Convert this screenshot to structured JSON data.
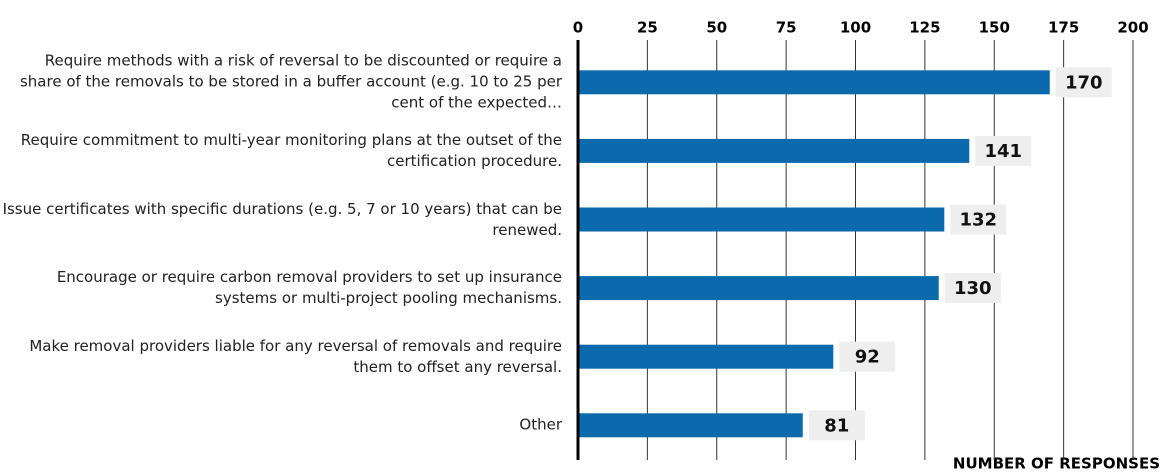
{
  "chart_data": {
    "type": "barh",
    "xlabel": "NUMBER OF RESPONSES",
    "categories": [
      "Require methods with a risk of reversal to be discounted or require a share of the removals to be stored in a buffer account (e.g. 10 to 25 per cent of the expected…",
      "Require commitment to multi-year monitoring plans at the outset of the certification procedure.",
      "Issue certificates with specific durations (e.g. 5, 7 or 10 years) that can be renewed.",
      "Encourage or require carbon removal providers to set up insurance systems or multi-project pooling mechanisms.",
      "Make removal providers liable for any reversal of removals and require them to offset any reversal.",
      "Other"
    ],
    "values": [
      170,
      141,
      132,
      130,
      92,
      81
    ],
    "color": "#0a6aab",
    "xlim": [
      0,
      200
    ],
    "xticks": [
      0,
      25,
      50,
      75,
      100,
      125,
      150,
      175,
      200
    ],
    "grid": true
  }
}
